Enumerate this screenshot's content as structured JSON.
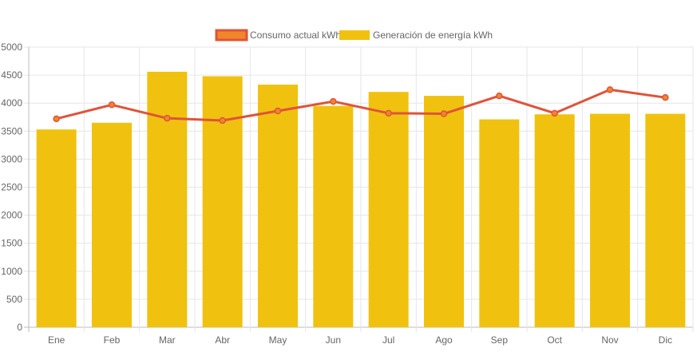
{
  "chart_data": {
    "type": "bar",
    "categories": [
      "Ene",
      "Feb",
      "Mar",
      "Abr",
      "May",
      "Jun",
      "Jul",
      "Ago",
      "Sep",
      "Oct",
      "Nov",
      "Dic"
    ],
    "series": [
      {
        "name": "Consumo actual kWh",
        "type": "line",
        "color": "#e0533a",
        "legend_fill": "#f0862a",
        "values": [
          3720,
          3970,
          3730,
          3690,
          3860,
          4030,
          3820,
          3810,
          4130,
          3820,
          4240,
          4100
        ]
      },
      {
        "name": "Generación de energía kWh",
        "type": "bar",
        "color": "#f0c20f",
        "values": [
          3530,
          3650,
          4560,
          4480,
          4330,
          3950,
          4200,
          4130,
          3710,
          3800,
          3810,
          3810
        ]
      }
    ],
    "ylim": [
      0,
      5000
    ],
    "yticks": [
      "0",
      "500",
      "1000",
      "1500",
      "2000",
      "2500",
      "3000",
      "3500",
      "4000",
      "4500",
      "5000"
    ],
    "grid": true,
    "legend": "top-center",
    "title": "",
    "xlabel": "",
    "ylabel": ""
  }
}
